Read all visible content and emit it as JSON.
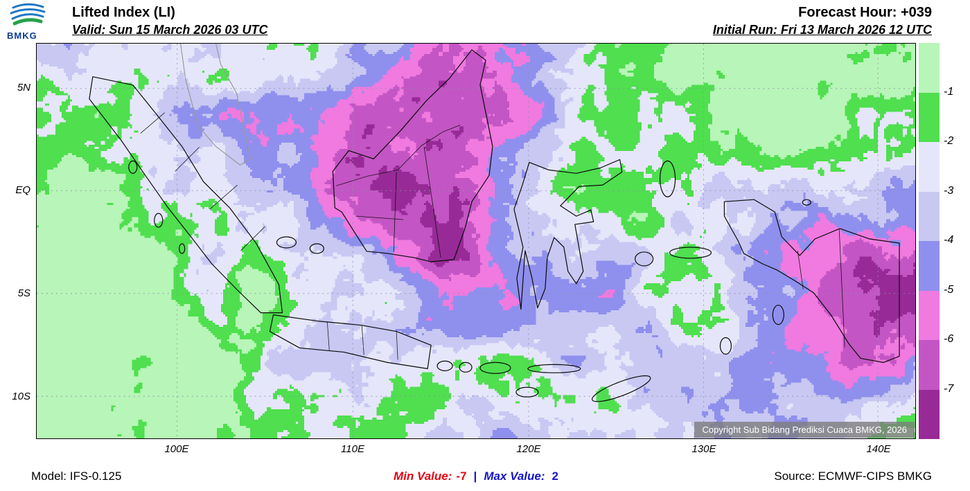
{
  "header": {
    "logo_text": "BMKG",
    "title": "Lifted Index (LI)",
    "valid_line": "Valid: Sun 15 March 2026 03 UTC",
    "forecast_hour": "Forecast Hour: +039",
    "initial_run": "Initial Run: Fri 13 March 2026 12 UTC"
  },
  "map": {
    "copyright": "Copyright Sub Bidang Prediksi Cuaca BMKG, 2026",
    "lat_ticks": [
      "5N",
      "EQ",
      "5S",
      "10S"
    ],
    "lon_ticks": [
      "100E",
      "110E",
      "120E",
      "130E",
      "140E"
    ]
  },
  "legend": {
    "tick_labels": [
      "-1",
      "-2",
      "-3",
      "-4",
      "-5",
      "-6",
      "-7"
    ],
    "colors": [
      "#b8f5b8",
      "#4fdf4f",
      "#e6e6fb",
      "#c8c8f3",
      "#8f8fee",
      "#f07ae0",
      "#c455c4",
      "#972a97"
    ]
  },
  "footer": {
    "model": "Model: IFS-0.125",
    "min_label": "Min Value:",
    "min_value": "-7",
    "separator": "|",
    "max_label": "Max Value:",
    "max_value": "2",
    "source": "Source: ECMWF-CIPS BMKG"
  },
  "chart_data": {
    "type": "heatmap",
    "title": "Lifted Index (LI)",
    "valid_time": "Sun 15 March 2026 03 UTC",
    "initial_run": "Fri 13 March 2026 12 UTC",
    "forecast_hour": 39,
    "model": "IFS-0.125",
    "source": "ECMWF-CIPS BMKG",
    "min_value": -7,
    "max_value": 2,
    "lon_axis_ticks": [
      100,
      110,
      120,
      130,
      140
    ],
    "lat_axis_ticks": [
      5,
      0,
      -5,
      -10
    ],
    "lon_range_est": [
      92,
      142
    ],
    "lat_range_est": [
      -12,
      7.2
    ],
    "colorbar": {
      "boundaries_top_to_bottom": [
        -1,
        -2,
        -3,
        -4,
        -5,
        -6,
        -7
      ],
      "band_colors_top_to_bottom": [
        "#b8f5b8",
        "#4fdf4f",
        "#e6e6fb",
        "#c8c8f3",
        "#8f8fee",
        "#f07ae0",
        "#c455c4",
        "#972a97"
      ],
      "orientation": "vertical-right"
    },
    "grid": "dotted lat/lon graticule",
    "legend_position": "right"
  }
}
